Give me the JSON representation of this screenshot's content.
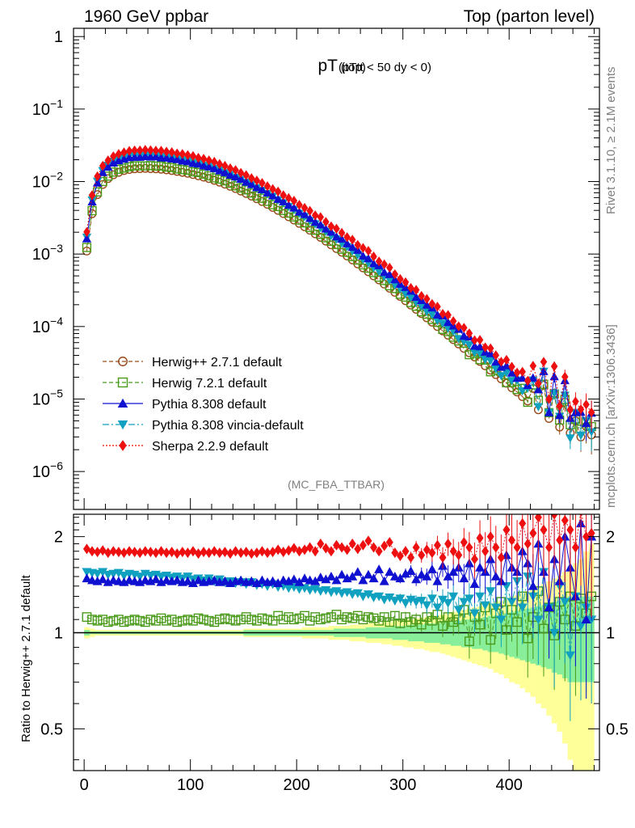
{
  "header": {
    "left": "1960 GeV ppbar",
    "right": "Top (parton level)"
  },
  "side_labels": {
    "rivet": "Rivet 3.1.10, ≥ 2.1M events",
    "mcplots": "mcplots.cern.ch [arXiv:1306.3436]"
  },
  "chart_data": [
    {
      "type": "scatter",
      "title_main": "pT",
      "title_sub": "(top)",
      "title_extra": "(pTtt < 50 dy < 0)",
      "watermark": "(MC_FBA_TTBAR)",
      "xlabel": "",
      "ylabel": "",
      "xlim": [
        -10,
        485
      ],
      "ylim": [
        3e-07,
        1.3
      ],
      "log_y": true,
      "y_tick_labels": [
        "1",
        "10^-1",
        "10^-2",
        "10^-3",
        "10^-4",
        "10^-5",
        "10^-6"
      ],
      "legend_position": "bottom-left",
      "series": [
        {
          "name": "Herwig++ 2.7.1 default",
          "color": "#9a4a1a",
          "marker": "open-circle",
          "line": "dashed",
          "x_start": 2.5,
          "x_step": 5,
          "count": 96,
          "values": [
            0.0011,
            0.0036,
            0.0066,
            0.0091,
            0.011,
            0.0124,
            0.0134,
            0.0142,
            0.0147,
            0.015,
            0.0151,
            0.0152,
            0.0151,
            0.015,
            0.0148,
            0.0145,
            0.0142,
            0.0138,
            0.0134,
            0.013,
            0.0125,
            0.012,
            0.0115,
            0.011,
            0.0104,
            0.0098,
            0.0092,
            0.0086,
            0.008,
            0.0074,
            0.00685,
            0.0063,
            0.0058,
            0.0053,
            0.00485,
            0.0044,
            0.004,
            0.00362,
            0.00327,
            0.00295,
            0.00265,
            0.00238,
            0.00213,
            0.0019,
            0.0017,
            0.00151,
            0.00134,
            0.00119,
            0.00106,
            0.00094,
            0.00083,
            0.00073,
            0.000645,
            0.00057,
            0.0005,
            0.00044,
            0.000385,
            0.000338,
            0.000296,
            0.00026,
            0.000227,
            0.000198,
            0.000173,
            0.000151,
            0.000132,
            0.000115,
            0.0001,
            8.7e-05,
            7.6e-05,
            6.6e-05,
            5.75e-05,
            5e-05,
            4.35e-05,
            3.8e-05,
            3.3e-05,
            2.87e-05,
            2.5e-05,
            2.17e-05,
            1.9e-05,
            1.65e-05,
            1.43e-05,
            1.25e-05,
            1.08e-05,
            9.4e-06,
            1.4e-05,
            7.1e-06,
            1.55e-05,
            5.4e-06,
            1.2e-05,
            4.1e-06,
            9e-06,
            3.4e-06,
            5e-06,
            3e-06,
            4.2e-06,
            3.2e-06
          ]
        },
        {
          "name": "Herwig 7.2.1 default",
          "color": "#4a9a1a",
          "marker": "open-square",
          "line": "dashed",
          "x_start": 2.5,
          "x_step": 5,
          "count": 96,
          "ratio": [
            1.12,
            1.1,
            1.09,
            1.1,
            1.08,
            1.09,
            1.1,
            1.08,
            1.09,
            1.1,
            1.09,
            1.08,
            1.1,
            1.09,
            1.11,
            1.09,
            1.1,
            1.08,
            1.09,
            1.1,
            1.09,
            1.11,
            1.1,
            1.09,
            1.08,
            1.1,
            1.11,
            1.1,
            1.09,
            1.1,
            1.12,
            1.1,
            1.09,
            1.11,
            1.1,
            1.09,
            1.13,
            1.1,
            1.12,
            1.1,
            1.11,
            1.13,
            1.09,
            1.12,
            1.1,
            1.11,
            1.12,
            1.14,
            1.1,
            1.12,
            1.11,
            1.13,
            1.1,
            1.12,
            1.11,
            1.09,
            1.12,
            1.08,
            1.13,
            1.07,
            1.12,
            1.08,
            1.1,
            1.06,
            1.12,
            1.09,
            1.14,
            1.05,
            1.12,
            1.08,
            1.1,
            1.18,
            0.94,
            1.12,
            1.06,
            1.2,
            0.95,
            1.15,
            1.25,
            1.02,
            1.18,
            1.08,
            1.3,
            0.96,
            1.12,
            1.35,
            1.03,
            1.2,
            0.98,
            1.25,
            1.1,
            1.3,
            1.05,
            1.28,
            1.15,
            1.3
          ]
        },
        {
          "name": "Pythia 8.308 default",
          "color": "#1010d0",
          "marker": "triangle-up",
          "line": "solid",
          "x_start": 2.5,
          "x_step": 5,
          "count": 96,
          "ratio": [
            1.48,
            1.46,
            1.45,
            1.47,
            1.44,
            1.46,
            1.45,
            1.44,
            1.46,
            1.45,
            1.44,
            1.46,
            1.45,
            1.47,
            1.44,
            1.46,
            1.45,
            1.46,
            1.44,
            1.45,
            1.43,
            1.46,
            1.44,
            1.45,
            1.46,
            1.44,
            1.45,
            1.43,
            1.45,
            1.46,
            1.44,
            1.45,
            1.43,
            1.46,
            1.44,
            1.45,
            1.43,
            1.46,
            1.45,
            1.47,
            1.44,
            1.48,
            1.46,
            1.45,
            1.49,
            1.47,
            1.5,
            1.46,
            1.52,
            1.48,
            1.5,
            1.55,
            1.46,
            1.52,
            1.48,
            1.58,
            1.45,
            1.55,
            1.5,
            1.48,
            1.53,
            1.56,
            1.47,
            1.52,
            1.5,
            1.58,
            1.45,
            1.62,
            1.5,
            1.55,
            1.6,
            1.48,
            1.65,
            1.42,
            1.6,
            1.55,
            1.7,
            1.5,
            1.45,
            1.75,
            1.6,
            1.55,
            1.8,
            1.65,
            1.4,
            1.9,
            1.55,
            1.2,
            1.7,
            1.45,
            2.0,
            1.6,
            1.3,
            2.2,
            1.1,
            2.0
          ]
        },
        {
          "name": "Pythia 8.308 vincia-default",
          "color": "#10a0c0",
          "marker": "triangle-down",
          "line": "dash-dot",
          "x_start": 2.5,
          "x_step": 5,
          "count": 96,
          "ratio": [
            1.55,
            1.54,
            1.53,
            1.55,
            1.52,
            1.53,
            1.54,
            1.51,
            1.53,
            1.52,
            1.5,
            1.53,
            1.51,
            1.52,
            1.5,
            1.51,
            1.49,
            1.5,
            1.48,
            1.5,
            1.47,
            1.48,
            1.46,
            1.48,
            1.45,
            1.47,
            1.44,
            1.45,
            1.43,
            1.44,
            1.42,
            1.44,
            1.41,
            1.42,
            1.4,
            1.42,
            1.39,
            1.4,
            1.38,
            1.39,
            1.37,
            1.38,
            1.36,
            1.37,
            1.35,
            1.36,
            1.34,
            1.35,
            1.33,
            1.34,
            1.32,
            1.33,
            1.3,
            1.32,
            1.29,
            1.3,
            1.27,
            1.29,
            1.26,
            1.28,
            1.24,
            1.27,
            1.25,
            1.26,
            1.22,
            1.28,
            1.2,
            1.27,
            1.24,
            1.3,
            1.18,
            1.25,
            1.28,
            1.15,
            1.3,
            1.22,
            1.35,
            1.2,
            1.1,
            1.4,
            1.25,
            1.45,
            1.2,
            1.5,
            1.3,
            1.1,
            1.55,
            1.2,
            1.0,
            1.4,
            1.25,
            0.85,
            1.3,
            1.05,
            1.2,
            1.1
          ]
        },
        {
          "name": "Sherpa 2.2.9 default",
          "color": "#ee1010",
          "marker": "diamond",
          "line": "dotted",
          "x_start": 2.5,
          "x_step": 5,
          "count": 96,
          "ratio": [
            1.83,
            1.8,
            1.79,
            1.81,
            1.78,
            1.8,
            1.79,
            1.78,
            1.8,
            1.79,
            1.78,
            1.8,
            1.79,
            1.78,
            1.8,
            1.78,
            1.79,
            1.77,
            1.79,
            1.78,
            1.8,
            1.77,
            1.79,
            1.78,
            1.8,
            1.78,
            1.79,
            1.77,
            1.8,
            1.78,
            1.79,
            1.77,
            1.78,
            1.8,
            1.78,
            1.79,
            1.82,
            1.79,
            1.81,
            1.84,
            1.8,
            1.82,
            1.85,
            1.8,
            1.9,
            1.84,
            1.8,
            1.88,
            1.85,
            1.82,
            1.9,
            1.83,
            1.88,
            1.94,
            1.85,
            1.8,
            1.87,
            1.92,
            1.78,
            1.74,
            1.8,
            1.72,
            1.85,
            1.75,
            1.82,
            1.78,
            1.88,
            1.72,
            1.9,
            1.8,
            1.75,
            1.92,
            1.85,
            1.7,
            1.98,
            1.8,
            2.0,
            1.85,
            1.72,
            2.1,
            1.95,
            1.85,
            2.2,
            1.9,
            2.05,
            2.3,
            2.1,
            1.85,
            2.35,
            1.95,
            2.25,
            2.1,
            1.85,
            2.4,
            2.0,
            2.05
          ]
        }
      ]
    },
    {
      "type": "scatter",
      "xlabel": "",
      "ylabel": "Ratio to Herwig++ 2.7.1 default",
      "xlim": [
        -10,
        485
      ],
      "ylim": [
        0.37,
        2.35
      ],
      "log_y": true,
      "x_ticks": [
        0,
        100,
        200,
        300,
        400
      ],
      "y_ticks": [
        0.5,
        1,
        2
      ],
      "y_tick_labels": [
        "0.5",
        "1",
        "2"
      ],
      "reference_line": 1,
      "bands": [
        {
          "color": "#ffff99",
          "rel_err": [
            0.04,
            0.03,
            0.02,
            0.02,
            0.02,
            0.02,
            0.02,
            0.02,
            0.02,
            0.02,
            0.02,
            0.02,
            0.02,
            0.02,
            0.02,
            0.02,
            0.02,
            0.02,
            0.02,
            0.02,
            0.02,
            0.02,
            0.02,
            0.02,
            0.02,
            0.02,
            0.02,
            0.02,
            0.02,
            0.02,
            0.03,
            0.03,
            0.03,
            0.03,
            0.03,
            0.03,
            0.03,
            0.03,
            0.03,
            0.03,
            0.03,
            0.04,
            0.04,
            0.04,
            0.04,
            0.04,
            0.05,
            0.05,
            0.05,
            0.05,
            0.06,
            0.06,
            0.06,
            0.07,
            0.07,
            0.07,
            0.08,
            0.08,
            0.09,
            0.09,
            0.1,
            0.1,
            0.11,
            0.11,
            0.12,
            0.13,
            0.13,
            0.14,
            0.15,
            0.16,
            0.17,
            0.18,
            0.19,
            0.2,
            0.21,
            0.22,
            0.23,
            0.25,
            0.26,
            0.28,
            0.3,
            0.31,
            0.33,
            0.35,
            0.37,
            0.4,
            0.42,
            0.45,
            0.48,
            0.51,
            0.55,
            0.6,
            0.65,
            0.7,
            0.8,
            0.9
          ]
        },
        {
          "color": "#88ee99",
          "rel_err": [
            0.02,
            0.01,
            0.01,
            0.01,
            0.01,
            0.01,
            0.01,
            0.01,
            0.01,
            0.01,
            0.01,
            0.01,
            0.01,
            0.01,
            0.01,
            0.01,
            0.01,
            0.01,
            0.01,
            0.01,
            0.01,
            0.01,
            0.01,
            0.01,
            0.01,
            0.01,
            0.01,
            0.01,
            0.01,
            0.01,
            0.02,
            0.02,
            0.02,
            0.02,
            0.02,
            0.02,
            0.02,
            0.02,
            0.02,
            0.02,
            0.02,
            0.02,
            0.02,
            0.02,
            0.02,
            0.02,
            0.02,
            0.03,
            0.03,
            0.03,
            0.03,
            0.03,
            0.03,
            0.04,
            0.04,
            0.04,
            0.04,
            0.04,
            0.05,
            0.05,
            0.05,
            0.06,
            0.06,
            0.06,
            0.07,
            0.07,
            0.07,
            0.08,
            0.08,
            0.09,
            0.09,
            0.1,
            0.1,
            0.11,
            0.11,
            0.12,
            0.13,
            0.13,
            0.14,
            0.15,
            0.16,
            0.17,
            0.18,
            0.19,
            0.2,
            0.21,
            0.22,
            0.23,
            0.25,
            0.26,
            0.28,
            0.3,
            0.3,
            0.3,
            0.3,
            0.3
          ]
        }
      ]
    }
  ]
}
